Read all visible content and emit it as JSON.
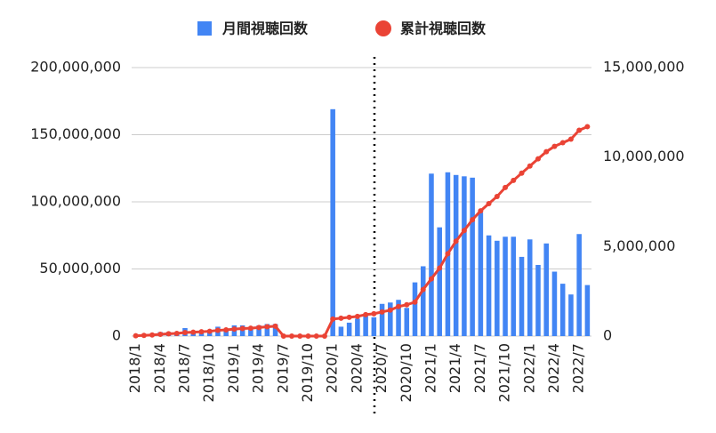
{
  "chart_data": {
    "type": "combo",
    "categories": [
      "2018/1",
      null,
      null,
      "2018/4",
      null,
      null,
      "2018/7",
      null,
      null,
      "2018/10",
      null,
      null,
      "2019/1",
      null,
      null,
      "2019/4",
      null,
      null,
      "2019/7",
      null,
      null,
      "2019/10",
      null,
      null,
      "2020/1",
      null,
      null,
      "2020/4",
      null,
      null,
      "2020/7",
      null,
      null,
      "2020/10",
      null,
      null,
      "2021/1",
      null,
      null,
      "2021/4",
      null,
      null,
      "2021/7",
      null,
      null,
      "2021/10",
      null,
      null,
      "2022/1",
      null,
      null,
      "2022/4",
      null,
      null,
      "2022/7",
      null
    ],
    "series": [
      {
        "name": "月間視聴回数",
        "color": "#4285f4",
        "kind": "bar",
        "axis": "y",
        "values": [
          500000,
          1000000,
          1000000,
          3000000,
          3000000,
          1000000,
          6000000,
          2000000,
          2000000,
          3000000,
          7000000,
          4000000,
          8000000,
          8000000,
          6000000,
          8000000,
          9000000,
          9000000,
          0,
          0,
          0,
          0,
          0,
          0,
          169000000,
          7000000,
          10000000,
          13000000,
          15000000,
          14000000,
          24000000,
          25000000,
          27000000,
          21000000,
          40000000,
          52000000,
          121000000,
          81000000,
          122000000,
          120000000,
          119000000,
          118000000,
          92000000,
          75000000,
          71000000,
          74000000,
          74000000,
          59000000,
          72000000,
          53000000,
          69000000,
          48000000,
          39000000,
          31000000,
          76000000,
          38000000
        ]
      },
      {
        "name": "累計視聴回数",
        "color": "#ea4335",
        "kind": "line",
        "axis": "y2",
        "values": [
          20000,
          40000,
          60000,
          100000,
          130000,
          150000,
          200000,
          220000,
          240000,
          270000,
          320000,
          350000,
          390000,
          420000,
          440000,
          480000,
          520000,
          550000,
          0,
          0,
          0,
          0,
          0,
          0,
          950000,
          1000000,
          1050000,
          1100000,
          1200000,
          1250000,
          1350000,
          1450000,
          1650000,
          1750000,
          1900000,
          2600000,
          3200000,
          3800000,
          4600000,
          5300000,
          5900000,
          6500000,
          7000000,
          7400000,
          7800000,
          8300000,
          8700000,
          9100000,
          9500000,
          9900000,
          10300000,
          10600000,
          10800000,
          11000000,
          11500000,
          11700000
        ]
      }
    ],
    "ylim": [
      0,
      200000000
    ],
    "yticks": [
      0,
      {
        "value": 50000000,
        "label": "50,000,000"
      },
      {
        "value": 100000000,
        "label": "100,000,000"
      },
      {
        "value": 150000000,
        "label": "150,000,000"
      },
      {
        "value": 200000000,
        "label": "200,000,000"
      }
    ],
    "y2lim": [
      0,
      15000000
    ],
    "y2ticks": [
      0,
      {
        "value": 5000000,
        "label": "5,000,000"
      },
      {
        "value": 10000000,
        "label": "10,000,000"
      },
      {
        "value": 15000000,
        "label": "15,000,000"
      }
    ],
    "grid": true
  }
}
